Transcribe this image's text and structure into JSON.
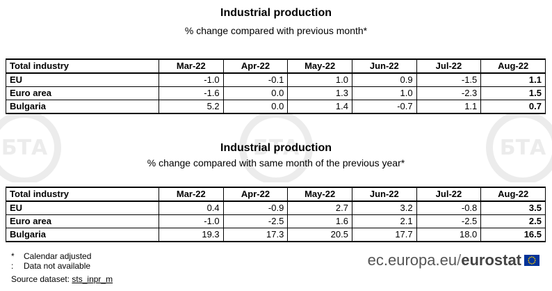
{
  "table1": {
    "title": "Industrial production",
    "subtitle": "% change compared with previous month*",
    "header": [
      "Total industry",
      "Mar-22",
      "Apr-22",
      "May-22",
      "Jun-22",
      "Jul-22",
      "Aug-22"
    ],
    "rows": [
      {
        "name": "EU",
        "values": [
          "-1.0",
          "-0.1",
          "1.0",
          "0.9",
          "-1.5",
          "1.1"
        ]
      },
      {
        "name": "Euro area",
        "values": [
          "-1.6",
          "0.0",
          "1.3",
          "1.0",
          "-2.3",
          "1.5"
        ]
      },
      {
        "name": "Bulgaria",
        "values": [
          "5.2",
          "0.0",
          "1.4",
          "-0.7",
          "1.1",
          "0.7"
        ]
      }
    ]
  },
  "table2": {
    "title": "Industrial production",
    "subtitle": "% change compared with same month of the previous year*",
    "header": [
      "Total industry",
      "Mar-22",
      "Apr-22",
      "May-22",
      "Jun-22",
      "Jul-22",
      "Aug-22"
    ],
    "rows": [
      {
        "name": "EU",
        "values": [
          "0.4",
          "-0.9",
          "2.7",
          "3.2",
          "-0.8",
          "3.5"
        ]
      },
      {
        "name": "Euro area",
        "values": [
          "-1.0",
          "-2.5",
          "1.6",
          "2.1",
          "-2.5",
          "2.5"
        ]
      },
      {
        "name": "Bulgaria",
        "values": [
          "19.3",
          "17.3",
          "20.5",
          "17.7",
          "18.0",
          "16.5"
        ]
      }
    ]
  },
  "footnotes": [
    {
      "symbol": "*",
      "text": "Calendar adjusted"
    },
    {
      "symbol": ":",
      "text": "Data not available"
    }
  ],
  "source": {
    "label": "Source dataset:",
    "dataset": "sts_inpr_m"
  },
  "brand": {
    "domain": "ec.europa.eu",
    "slash": "/",
    "name": "eurostat",
    "flag_color": "#003399",
    "star_color": "#ffcc00"
  },
  "watermark": {
    "text": "БТА",
    "color": "#e6e6e6"
  }
}
